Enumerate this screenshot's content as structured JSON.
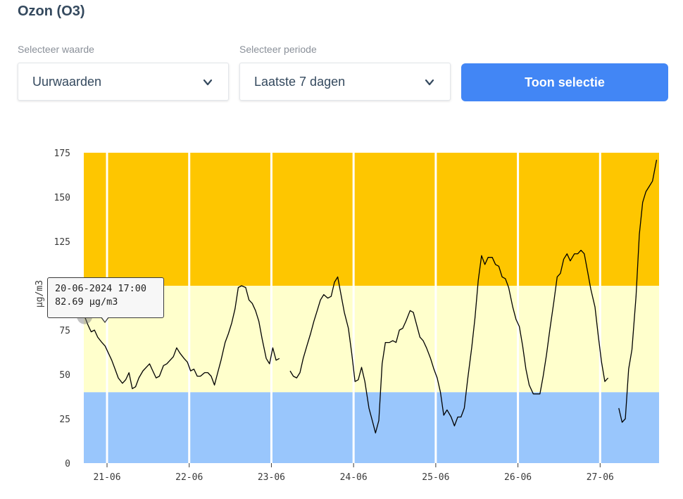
{
  "header": {
    "title": "Ozon (O3)"
  },
  "filters": {
    "value_label": "Selecteer waarde",
    "value_selected": "Uurwaarden",
    "period_label": "Selecteer periode",
    "period_selected": "Laatste 7 dagen",
    "submit_label": "Toon selectie"
  },
  "tooltip": {
    "datetime": "20-06-2024 17:00",
    "value": "82.69 µg/m3"
  },
  "colors": {
    "accent": "#4286f5",
    "band_low": "#99c6fc",
    "band_mid": "#ffffcc",
    "band_high": "#fec600",
    "line": "#000000"
  },
  "chart_data": {
    "type": "line",
    "ylabel": "µg/m3",
    "ylim": [
      0,
      175
    ],
    "yticks": [
      0,
      25,
      50,
      75,
      100,
      125,
      150,
      175
    ],
    "xlim": [
      20.7,
      27.7
    ],
    "xticks": [
      {
        "x": 21,
        "label": "21-06"
      },
      {
        "x": 22,
        "label": "22-06"
      },
      {
        "x": 23,
        "label": "23-06"
      },
      {
        "x": 24,
        "label": "24-06"
      },
      {
        "x": 25,
        "label": "25-06"
      },
      {
        "x": 26,
        "label": "26-06"
      },
      {
        "x": 27,
        "label": "27-06"
      }
    ],
    "bands": [
      {
        "from": 0,
        "to": 40,
        "color": "#99c6fc"
      },
      {
        "from": 40,
        "to": 100,
        "color": "#ffffcc"
      },
      {
        "from": 100,
        "to": 175,
        "color": "#fec600"
      }
    ],
    "series": [
      {
        "values": [
          [
            20.71,
            82.7
          ],
          [
            20.75,
            78
          ],
          [
            20.79,
            74
          ],
          [
            20.83,
            75
          ],
          [
            20.87,
            71
          ],
          [
            20.92,
            68
          ],
          [
            20.96,
            66
          ],
          [
            21.0,
            62
          ],
          [
            21.04,
            58
          ],
          [
            21.08,
            53
          ],
          [
            21.12,
            48
          ],
          [
            21.17,
            45
          ],
          [
            21.21,
            47
          ],
          [
            21.25,
            51
          ],
          [
            21.29,
            42
          ],
          [
            21.33,
            43
          ],
          [
            21.37,
            48
          ],
          [
            21.42,
            52
          ],
          [
            21.46,
            54
          ],
          [
            21.5,
            56
          ],
          [
            21.54,
            52
          ],
          [
            21.58,
            48
          ],
          [
            21.62,
            49
          ],
          [
            21.67,
            55
          ],
          [
            21.71,
            56
          ],
          [
            21.75,
            58
          ],
          [
            21.79,
            60
          ],
          [
            21.83,
            65
          ],
          [
            21.87,
            62
          ],
          [
            21.92,
            59
          ],
          [
            21.96,
            57
          ],
          [
            22.0,
            52
          ],
          [
            22.04,
            53
          ],
          [
            22.08,
            49
          ],
          [
            22.12,
            49
          ],
          [
            22.17,
            51
          ],
          [
            22.21,
            51
          ],
          [
            22.25,
            49
          ],
          [
            22.29,
            44
          ],
          [
            22.33,
            51
          ],
          [
            22.37,
            58
          ],
          [
            22.42,
            68
          ],
          [
            22.46,
            73
          ],
          [
            22.5,
            79
          ],
          [
            22.54,
            87
          ],
          [
            22.58,
            99
          ],
          [
            22.62,
            100
          ],
          [
            22.67,
            99
          ],
          [
            22.71,
            92
          ],
          [
            22.75,
            90
          ],
          [
            22.79,
            86
          ],
          [
            22.83,
            80
          ],
          [
            22.87,
            70
          ],
          [
            22.92,
            59
          ],
          [
            22.96,
            56
          ],
          [
            23.0,
            65
          ],
          [
            23.04,
            58
          ],
          [
            23.08,
            59
          ],
          null,
          [
            23.21,
            52
          ],
          [
            23.25,
            49
          ],
          [
            23.29,
            48
          ],
          [
            23.33,
            51
          ],
          [
            23.37,
            59
          ],
          [
            23.42,
            67
          ],
          [
            23.46,
            73
          ],
          [
            23.5,
            80
          ],
          [
            23.54,
            86
          ],
          [
            23.58,
            92
          ],
          [
            23.62,
            95
          ],
          [
            23.67,
            93
          ],
          [
            23.71,
            94
          ],
          [
            23.75,
            102
          ],
          [
            23.79,
            105
          ],
          [
            23.83,
            95
          ],
          [
            23.87,
            85
          ],
          [
            23.92,
            76
          ],
          [
            23.96,
            62
          ],
          [
            24.0,
            46
          ],
          [
            24.04,
            47
          ],
          [
            24.08,
            54
          ],
          [
            24.12,
            46
          ],
          [
            24.17,
            31
          ],
          [
            24.21,
            24
          ],
          [
            24.25,
            17
          ],
          [
            24.29,
            24
          ],
          [
            24.33,
            56
          ],
          [
            24.37,
            68
          ],
          [
            24.42,
            68
          ],
          [
            24.46,
            69
          ],
          [
            24.5,
            68
          ],
          [
            24.54,
            75
          ],
          [
            24.58,
            76
          ],
          [
            24.62,
            80
          ],
          [
            24.67,
            86
          ],
          [
            24.71,
            85
          ],
          [
            24.75,
            78
          ],
          [
            24.79,
            71
          ],
          [
            24.83,
            69
          ],
          [
            24.87,
            65
          ],
          [
            24.92,
            59
          ],
          [
            24.96,
            53
          ],
          [
            25.0,
            48
          ],
          [
            25.04,
            40
          ],
          [
            25.08,
            27
          ],
          [
            25.12,
            30
          ],
          [
            25.17,
            26
          ],
          [
            25.21,
            21
          ],
          [
            25.25,
            26
          ],
          [
            25.29,
            26
          ],
          [
            25.33,
            31
          ],
          [
            25.37,
            47
          ],
          [
            25.42,
            65
          ],
          [
            25.46,
            82
          ],
          [
            25.5,
            103
          ],
          [
            25.54,
            117
          ],
          [
            25.58,
            112
          ],
          [
            25.62,
            116
          ],
          [
            25.67,
            116
          ],
          [
            25.71,
            112
          ],
          [
            25.75,
            111
          ],
          [
            25.79,
            105
          ],
          [
            25.83,
            104
          ],
          [
            25.87,
            99
          ],
          [
            25.92,
            88
          ],
          [
            25.96,
            81
          ],
          [
            26.0,
            77
          ],
          [
            26.04,
            66
          ],
          [
            26.08,
            53
          ],
          [
            26.12,
            44
          ],
          [
            26.17,
            39
          ],
          [
            26.21,
            39
          ],
          [
            26.25,
            39
          ],
          [
            26.29,
            49
          ],
          [
            26.33,
            61
          ],
          [
            26.37,
            75
          ],
          [
            26.42,
            91
          ],
          [
            26.46,
            105
          ],
          [
            26.5,
            107
          ],
          [
            26.54,
            115
          ],
          [
            26.58,
            118
          ],
          [
            26.62,
            114
          ],
          [
            26.67,
            118
          ],
          [
            26.71,
            118
          ],
          [
            26.75,
            120
          ],
          [
            26.79,
            118
          ],
          [
            26.83,
            108
          ],
          [
            26.87,
            98
          ],
          [
            26.92,
            88
          ],
          [
            26.96,
            72
          ],
          [
            27.0,
            57
          ],
          [
            27.04,
            46
          ],
          [
            27.08,
            48
          ],
          null,
          [
            27.21,
            31
          ],
          [
            27.25,
            23
          ],
          [
            27.29,
            25
          ],
          [
            27.33,
            53
          ],
          [
            27.37,
            64
          ],
          [
            27.42,
            94
          ],
          [
            27.46,
            129
          ],
          [
            27.5,
            147
          ],
          [
            27.54,
            153
          ],
          [
            27.58,
            156
          ],
          [
            27.62,
            159
          ],
          [
            27.67,
            171
          ]
        ]
      }
    ]
  }
}
